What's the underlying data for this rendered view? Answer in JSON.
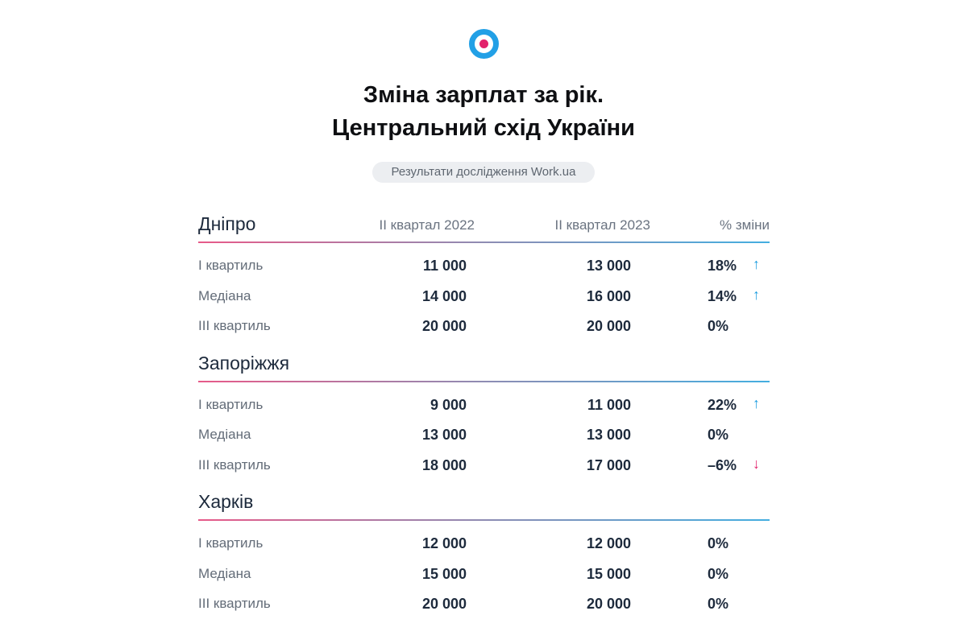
{
  "header": {
    "logo_icon": "workua-target-logo",
    "title_line1": "Зміна зарплат за рік.",
    "title_line2": "Центральний схід України",
    "badge": "Результати дослідження Work.ua"
  },
  "columns": {
    "col1": "II квартал 2022",
    "col2": "II квартал 2023",
    "col3": "% зміни"
  },
  "colors": {
    "accent_blue": "#22a0e6",
    "accent_pink": "#e2226b",
    "rule_gradient_start": "#e75a89",
    "rule_gradient_end": "#44aee0"
  },
  "sections": [
    {
      "city": "Дніпро",
      "rows": [
        {
          "label": "I квартиль",
          "v2022": "11 000",
          "v2023": "13 000",
          "pct": "18%",
          "arrow": "↑",
          "trend": "up"
        },
        {
          "label": "Медіана",
          "v2022": "14 000",
          "v2023": "16 000",
          "pct": "14%",
          "arrow": "↑",
          "trend": "up"
        },
        {
          "label": "III квартиль",
          "v2022": "20 000",
          "v2023": "20 000",
          "pct": "0%",
          "arrow": "",
          "trend": "none"
        }
      ]
    },
    {
      "city": "Запоріжжя",
      "rows": [
        {
          "label": "I квартиль",
          "v2022": "9 000",
          "v2023": "11 000",
          "pct": "22%",
          "arrow": "↑",
          "trend": "up"
        },
        {
          "label": "Медіана",
          "v2022": "13 000",
          "v2023": "13 000",
          "pct": "0%",
          "arrow": "",
          "trend": "none"
        },
        {
          "label": "III квартиль",
          "v2022": "18 000",
          "v2023": "17 000",
          "pct": "–6%",
          "arrow": "↓",
          "trend": "down"
        }
      ]
    },
    {
      "city": "Харків",
      "rows": [
        {
          "label": "I квартиль",
          "v2022": "12 000",
          "v2023": "12 000",
          "pct": "0%",
          "arrow": "",
          "trend": "none"
        },
        {
          "label": "Медіана",
          "v2022": "15 000",
          "v2023": "15 000",
          "pct": "0%",
          "arrow": "",
          "trend": "none"
        },
        {
          "label": "III квартиль",
          "v2022": "20 000",
          "v2023": "20 000",
          "pct": "0%",
          "arrow": "",
          "trend": "none"
        }
      ]
    }
  ]
}
